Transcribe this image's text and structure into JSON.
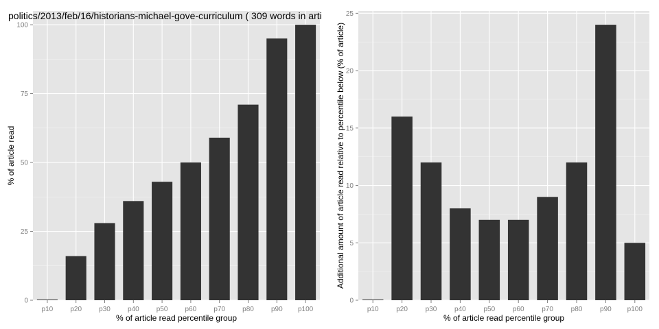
{
  "chart_data": [
    {
      "type": "bar",
      "title": "politics/2013/feb/16/historians-michael-gove-curriculum ( 309 words in arti",
      "xlabel": "% of article read percentile group",
      "ylabel": "% of article read",
      "categories": [
        "p10",
        "p20",
        "p30",
        "p40",
        "p50",
        "p60",
        "p70",
        "p80",
        "p90",
        "p100"
      ],
      "values": [
        0,
        16,
        28,
        36,
        43,
        50,
        59,
        71,
        95,
        100
      ],
      "ylim": [
        0,
        105
      ],
      "yticks": [
        0,
        25,
        50,
        75,
        100
      ],
      "grid": true,
      "bar_color": "#333333",
      "panel_color": "#e5e5e5"
    },
    {
      "type": "bar",
      "title": "",
      "xlabel": "% of article read percentile group",
      "ylabel": "Additional amount of article read relative to percentile below (% of article)",
      "categories": [
        "p10",
        "p20",
        "p30",
        "p40",
        "p50",
        "p60",
        "p70",
        "p80",
        "p90",
        "p100"
      ],
      "values": [
        0,
        16,
        12,
        8,
        7,
        7,
        9,
        12,
        24,
        5
      ],
      "ylim": [
        0,
        25.2
      ],
      "yticks": [
        0,
        5,
        10,
        15,
        20,
        25
      ],
      "grid": true,
      "bar_color": "#333333",
      "panel_color": "#e5e5e5"
    }
  ]
}
